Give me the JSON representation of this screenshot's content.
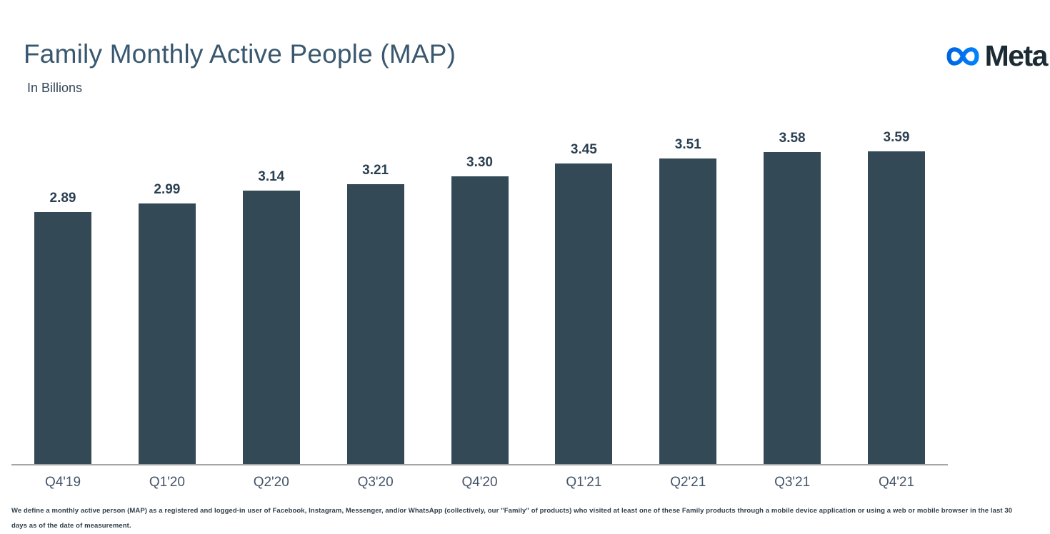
{
  "header": {
    "title": "Family Monthly Active People (MAP)",
    "subtitle": "In Billions"
  },
  "brand": {
    "wordmark": "Meta",
    "logo_icon": "meta-infinity-icon",
    "logo_gradient_start": "#0064E0",
    "logo_gradient_end": "#0082FB",
    "wordmark_color": "#1C2B33"
  },
  "chart_data": {
    "type": "bar",
    "title": "Family Monthly Active People (MAP)",
    "units": "In Billions",
    "categories": [
      "Q4'19",
      "Q1'20",
      "Q2'20",
      "Q3'20",
      "Q4'20",
      "Q1'21",
      "Q2'21",
      "Q3'21",
      "Q4'21"
    ],
    "values": [
      2.89,
      2.99,
      3.14,
      3.21,
      3.3,
      3.45,
      3.51,
      3.58,
      3.59
    ],
    "value_labels": [
      "2.89",
      "2.99",
      "3.14",
      "3.21",
      "3.30",
      "3.45",
      "3.51",
      "3.58",
      "3.59"
    ],
    "ylim": [
      0,
      3.67
    ],
    "grid": false,
    "legend": false,
    "data_labels": true,
    "bar_color": "#344956",
    "value_label_color": "#2A3F50",
    "category_label_color": "#44546A",
    "axis_line_color": "#A6A6A6"
  },
  "footnote": {
    "text": "We define a monthly active person (MAP) as a registered and logged-in user of Facebook, Instagram, Messenger, and/or WhatsApp (collectively, our \"Family\" of products) who visited at least one of these Family products through a mobile device application or using a web or mobile browser in the last 30 days as of the date of measurement."
  }
}
